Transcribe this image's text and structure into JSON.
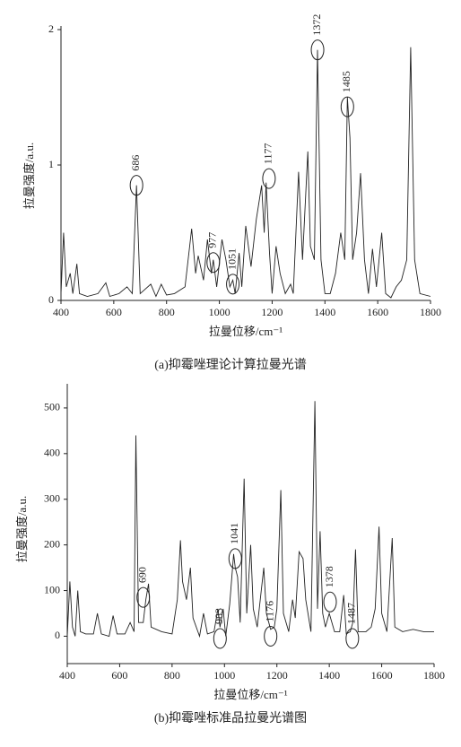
{
  "chart_data": [
    {
      "type": "line",
      "caption": "(a)抑霉唑理论计算拉曼光谱",
      "xlabel": "拉曼位移/cm⁻¹",
      "ylabel": "拉曼强度/a.u.",
      "color": "#222222",
      "x": [
        400,
        410,
        420,
        435,
        445,
        460,
        470,
        500,
        540,
        570,
        585,
        620,
        650,
        670,
        686,
        700,
        740,
        760,
        780,
        800,
        830,
        870,
        895,
        910,
        920,
        940,
        955,
        970,
        977,
        990,
        1010,
        1025,
        1040,
        1051,
        1060,
        1075,
        1085,
        1100,
        1120,
        1140,
        1160,
        1170,
        1177,
        1190,
        1200,
        1215,
        1230,
        1250,
        1270,
        1280,
        1300,
        1315,
        1335,
        1345,
        1360,
        1372,
        1385,
        1400,
        1420,
        1440,
        1460,
        1475,
        1485,
        1495,
        1505,
        1520,
        1535,
        1550,
        1565,
        1580,
        1595,
        1615,
        1630,
        1650,
        1670,
        1690,
        1710,
        1725,
        1740,
        1760,
        1800
      ],
      "values": [
        0.05,
        0.5,
        0.1,
        0.2,
        0.05,
        0.27,
        0.05,
        0.03,
        0.05,
        0.13,
        0.03,
        0.05,
        0.1,
        0.05,
        0.85,
        0.05,
        0.12,
        0.03,
        0.12,
        0.04,
        0.05,
        0.1,
        0.53,
        0.2,
        0.33,
        0.15,
        0.45,
        0.2,
        0.3,
        0.1,
        0.45,
        0.3,
        0.1,
        0.15,
        0.05,
        0.35,
        0.1,
        0.55,
        0.25,
        0.6,
        0.85,
        0.5,
        0.87,
        0.35,
        0.05,
        0.4,
        0.2,
        0.05,
        0.12,
        0.05,
        0.95,
        0.3,
        1.1,
        0.4,
        0.3,
        1.85,
        0.3,
        0.05,
        0.05,
        0.2,
        0.5,
        0.3,
        1.5,
        1.2,
        0.3,
        0.5,
        0.94,
        0.3,
        0.05,
        0.38,
        0.1,
        0.5,
        0.05,
        0.02,
        0.1,
        0.15,
        0.3,
        1.87,
        0.3,
        0.05,
        0.03
      ],
      "xlim": [
        400,
        1800
      ],
      "xticks": [
        400,
        600,
        800,
        1000,
        1200,
        1400,
        1600,
        1800
      ],
      "ylim": [
        0,
        2
      ],
      "yticks": [
        0,
        1,
        2
      ],
      "annotations": [
        {
          "label": "686",
          "x": 686,
          "y": 0.85
        },
        {
          "label": "977",
          "x": 977,
          "y": 0.28
        },
        {
          "label": "1051",
          "x": 1051,
          "y": 0.12
        },
        {
          "label": "1177",
          "x": 1188,
          "y": 0.9
        },
        {
          "label": "1372",
          "x": 1372,
          "y": 1.85
        },
        {
          "label": "1485",
          "x": 1485,
          "y": 1.43
        }
      ]
    },
    {
      "type": "line",
      "caption": "(b)抑霉唑标准品拉曼光谱图",
      "xlabel": "拉曼位移/cm⁻¹",
      "ylabel": "拉曼强度/a.u.",
      "color": "#222222",
      "x": [
        400,
        410,
        420,
        430,
        440,
        450,
        470,
        500,
        515,
        530,
        560,
        575,
        590,
        620,
        640,
        655,
        662,
        672,
        690,
        700,
        710,
        720,
        760,
        800,
        820,
        832,
        840,
        855,
        870,
        880,
        905,
        920,
        935,
        960,
        975,
        983,
        995,
        1005,
        1020,
        1035,
        1041,
        1050,
        1060,
        1075,
        1085,
        1100,
        1110,
        1125,
        1150,
        1160,
        1176,
        1190,
        1200,
        1215,
        1225,
        1245,
        1260,
        1270,
        1285,
        1300,
        1310,
        1330,
        1345,
        1355,
        1365,
        1375,
        1385,
        1400,
        1420,
        1440,
        1455,
        1465,
        1480,
        1490,
        1500,
        1510,
        1540,
        1560,
        1575,
        1590,
        1600,
        1620,
        1640,
        1650,
        1680,
        1720,
        1760,
        1800
      ],
      "values": [
        0,
        120,
        20,
        0,
        100,
        10,
        5,
        5,
        50,
        5,
        0,
        45,
        5,
        5,
        30,
        10,
        440,
        30,
        30,
        80,
        115,
        20,
        10,
        5,
        80,
        210,
        120,
        80,
        150,
        40,
        0,
        50,
        5,
        10,
        60,
        20,
        60,
        0,
        70,
        180,
        150,
        130,
        30,
        345,
        50,
        200,
        60,
        20,
        150,
        50,
        15,
        20,
        60,
        320,
        50,
        10,
        80,
        40,
        185,
        170,
        80,
        10,
        515,
        60,
        230,
        50,
        20,
        50,
        10,
        10,
        90,
        5,
        10,
        30,
        190,
        10,
        10,
        20,
        60,
        240,
        50,
        10,
        215,
        20,
        10,
        15,
        10,
        10
      ],
      "xlim": [
        400,
        1800
      ],
      "xticks": [
        400,
        600,
        800,
        1000,
        1200,
        1400,
        1600,
        1800
      ],
      "ylim": [
        -60,
        545
      ],
      "yticks": [
        0,
        100,
        200,
        300,
        400,
        500
      ],
      "annotations": [
        {
          "label": "690",
          "x": 690,
          "y": 85
        },
        {
          "label": "983",
          "x": 983,
          "y": -5
        },
        {
          "label": "1041",
          "x": 1041,
          "y": 170
        },
        {
          "label": "1176",
          "x": 1176,
          "y": 0
        },
        {
          "label": "1378",
          "x": 1403,
          "y": 75
        },
        {
          "label": "1487",
          "x": 1488,
          "y": -5
        }
      ]
    }
  ]
}
